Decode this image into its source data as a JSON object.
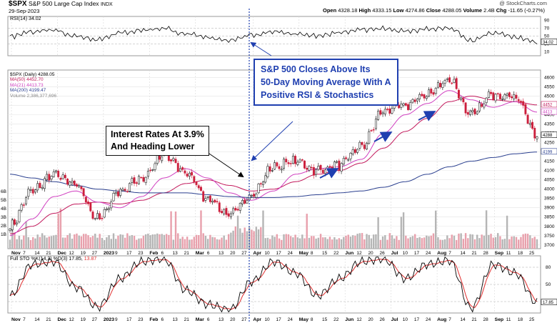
{
  "header": {
    "symbol": "$SPX",
    "name": "S&P 500 Large Cap Index",
    "exchange": "INDX",
    "date": "29-Sep-2023",
    "open_label": "Open",
    "open": "4328.18",
    "high_label": "High",
    "high": "4333.15",
    "low_label": "Low",
    "low": "4274.86",
    "close_label": "Close",
    "close": "4288.05",
    "volume_label": "Volume",
    "volume": "2.4B",
    "change_label": "Chg",
    "change": "-11.65 (-0.27%)",
    "watermark": "@ StockCharts.com"
  },
  "rsi_panel": {
    "legend": "RSI(14) 34.02",
    "ticks": [
      "90",
      "70",
      "50",
      "30",
      "10"
    ],
    "last_value_label": "34.02"
  },
  "price_panel": {
    "legend": [
      {
        "text": "$SPX (Daily) 4288.05",
        "color": "#000000"
      },
      {
        "text": "MA(50) 4452.70",
        "color": "#c2185b"
      },
      {
        "text": "MA(21) 4413.73",
        "color": "#d040c0"
      },
      {
        "text": "MA(200) 4199.47",
        "color": "#2a3f8f"
      },
      {
        "text": "Volume 2,386,377,696",
        "color": "#888888"
      }
    ],
    "right_ticks": [
      "4600",
      "4550",
      "4500",
      "4450",
      "4400",
      "4350",
      "4300",
      "4250",
      "4200",
      "4150",
      "4100",
      "4050",
      "4000",
      "3950",
      "3900",
      "3850",
      "3800",
      "3750",
      "3700"
    ],
    "left_volume_ticks": [
      "6B",
      "5B",
      "4B",
      "3B",
      "2B",
      "1B"
    ],
    "value_tags": [
      "4452",
      "4413",
      "4288",
      "4199"
    ]
  },
  "sto_panel": {
    "legend_prefix": "Full STO %K(14,3) %D(3) 17.85,",
    "legend_d": "13.87",
    "ticks": [
      "80",
      "50",
      "20"
    ],
    "last_value_label": "17.85"
  },
  "x_axis": {
    "labels": [
      "Nov",
      "7",
      "14",
      "21",
      "Dec",
      "12",
      "19",
      "27",
      "2023",
      "9",
      "17",
      "23",
      "Feb",
      "6",
      "13",
      "21",
      "Mar",
      "6",
      "13",
      "20",
      "27",
      "Apr",
      "10",
      "17",
      "24",
      "May",
      "8",
      "15",
      "22",
      "Jun",
      "12",
      "20",
      "26",
      "Jul",
      "10",
      "17",
      "24",
      "Aug",
      "7",
      "14",
      "21",
      "28",
      "Sep",
      "11",
      "18",
      "25"
    ],
    "bold_labels": [
      "Nov",
      "Dec",
      "2023",
      "Feb",
      "Mar",
      "Apr",
      "May",
      "Jun",
      "Jul",
      "Aug",
      "Sep"
    ]
  },
  "annotations": {
    "interest_rates": "Interest Rates At 3.9% And Heading Lower",
    "interest_rates_line1": "Interest Rates At 3.9%",
    "interest_rates_line2": "And Heading Lower",
    "closes_line1": "S&P 500 Closes Above Its",
    "closes_line2": "50-Day Moving Average With A",
    "closes_line3": "Positive RSI & Stochastics"
  },
  "colors": {
    "up": "#000000",
    "down": "#cc1f3c",
    "ma50": "#c2185b",
    "ma21": "#d040c0",
    "ma200": "#2a3f8f",
    "volume_up": "#b5b5b5",
    "volume_down": "#e8a0ac",
    "annotation_blue": "#1f3fb0",
    "sto_k": "#000000",
    "sto_d": "#e03030"
  },
  "chart_data": [
    {
      "type": "line",
      "title": "RSI(14)",
      "x": [
        "2022-11-01",
        "2022-11-15",
        "2022-11-30",
        "2022-12-13",
        "2022-12-28",
        "2023-01-12",
        "2023-01-26",
        "2023-02-02",
        "2023-02-16",
        "2023-03-01",
        "2023-03-13",
        "2023-03-24",
        "2023-04-03",
        "2023-04-18",
        "2023-05-02",
        "2023-05-16",
        "2023-06-01",
        "2023-06-15",
        "2023-06-30",
        "2023-07-14",
        "2023-07-31",
        "2023-08-16",
        "2023-08-31",
        "2023-09-14",
        "2023-09-29"
      ],
      "series": [
        {
          "values": [
            48,
            62,
            66,
            50,
            42,
            58,
            65,
            70,
            55,
            46,
            40,
            52,
            62,
            56,
            50,
            58,
            66,
            70,
            62,
            68,
            70,
            38,
            58,
            48,
            34.02
          ]
        }
      ],
      "ylim": [
        0,
        100
      ],
      "reference_lines": [
        70,
        50,
        30
      ]
    },
    {
      "type": "candlestick",
      "title": "$SPX (Daily)",
      "x": [
        "2022-11-01",
        "2022-11-15",
        "2022-11-30",
        "2022-12-13",
        "2022-12-28",
        "2023-01-12",
        "2023-01-26",
        "2023-02-02",
        "2023-02-16",
        "2023-03-01",
        "2023-03-13",
        "2023-03-24",
        "2023-04-03",
        "2023-04-18",
        "2023-05-02",
        "2023-05-16",
        "2023-06-01",
        "2023-06-15",
        "2023-06-30",
        "2023-07-14",
        "2023-07-31",
        "2023-08-16",
        "2023-08-31",
        "2023-09-14",
        "2023-09-29"
      ],
      "series": [
        {
          "name": "$SPX (Daily)",
          "values": [
            3800,
            3990,
            4080,
            4020,
            3840,
            3990,
            4060,
            4180,
            4090,
            3950,
            3860,
            3970,
            4120,
            4150,
            4100,
            4130,
            4230,
            4420,
            4450,
            4510,
            4590,
            4400,
            4510,
            4500,
            4288.05
          ]
        },
        {
          "name": "MA(50)",
          "values": [
            3760,
            3800,
            3870,
            3920,
            3930,
            3920,
            3940,
            3980,
            4030,
            4050,
            4020,
            3990,
            4000,
            4040,
            4080,
            4100,
            4140,
            4220,
            4310,
            4380,
            4470,
            4500,
            4480,
            4470,
            4452.7
          ]
        },
        {
          "name": "MA(21)",
          "values": [
            3750,
            3840,
            3960,
            3990,
            3930,
            3900,
            3960,
            4060,
            4110,
            4060,
            3980,
            3940,
            3990,
            4080,
            4110,
            4120,
            4160,
            4300,
            4400,
            4460,
            4530,
            4480,
            4440,
            4470,
            4413.73
          ]
        },
        {
          "name": "MA(200)",
          "values": [
            4080,
            4060,
            4040,
            4020,
            4000,
            3990,
            3980,
            3980,
            3980,
            3970,
            3960,
            3955,
            3955,
            3960,
            3970,
            3980,
            3990,
            4010,
            4040,
            4080,
            4120,
            4150,
            4170,
            4190,
            4199.47
          ]
        }
      ],
      "ylim": [
        3680,
        4640
      ]
    },
    {
      "type": "line",
      "title": "Full STO %K(14,3) %D(3)",
      "x": [
        "2022-11-01",
        "2022-11-15",
        "2022-11-30",
        "2022-12-13",
        "2022-12-28",
        "2023-01-12",
        "2023-01-26",
        "2023-02-02",
        "2023-02-16",
        "2023-03-01",
        "2023-03-13",
        "2023-03-24",
        "2023-04-03",
        "2023-04-18",
        "2023-05-02",
        "2023-05-16",
        "2023-06-01",
        "2023-06-15",
        "2023-06-30",
        "2023-07-14",
        "2023-07-31",
        "2023-08-16",
        "2023-08-31",
        "2023-09-14",
        "2023-09-29"
      ],
      "series": [
        {
          "name": "%K",
          "values": [
            30,
            85,
            90,
            45,
            10,
            60,
            90,
            95,
            40,
            15,
            5,
            55,
            90,
            70,
            30,
            60,
            90,
            95,
            60,
            85,
            92,
            8,
            85,
            70,
            17.85
          ]
        },
        {
          "name": "%D",
          "values": [
            25,
            75,
            88,
            55,
            15,
            50,
            85,
            92,
            50,
            20,
            8,
            45,
            85,
            75,
            35,
            55,
            85,
            93,
            65,
            80,
            90,
            12,
            75,
            75,
            13.87
          ]
        }
      ],
      "ylim": [
        0,
        100
      ],
      "reference_lines": [
        80,
        50,
        20
      ]
    }
  ]
}
